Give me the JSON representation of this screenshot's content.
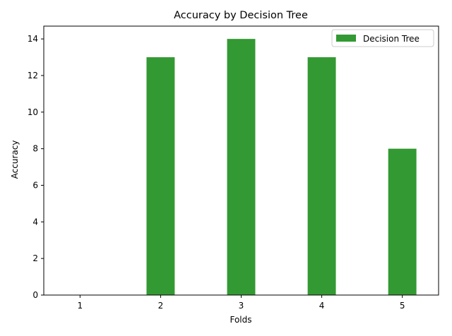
{
  "chart_data": {
    "type": "bar",
    "title": "Accuracy by Decision Tree",
    "xlabel": "Folds",
    "ylabel": "Accuracy",
    "categories": [
      "1",
      "2",
      "3",
      "4",
      "5"
    ],
    "series": [
      {
        "name": "Decision Tree",
        "values": [
          0,
          13,
          14,
          13,
          8
        ],
        "color": "#339933"
      }
    ],
    "ylim": [
      0,
      14.7
    ],
    "yticks": [
      0,
      2,
      4,
      6,
      8,
      10,
      12,
      14
    ],
    "grid": false,
    "legend_position": "top-right"
  }
}
